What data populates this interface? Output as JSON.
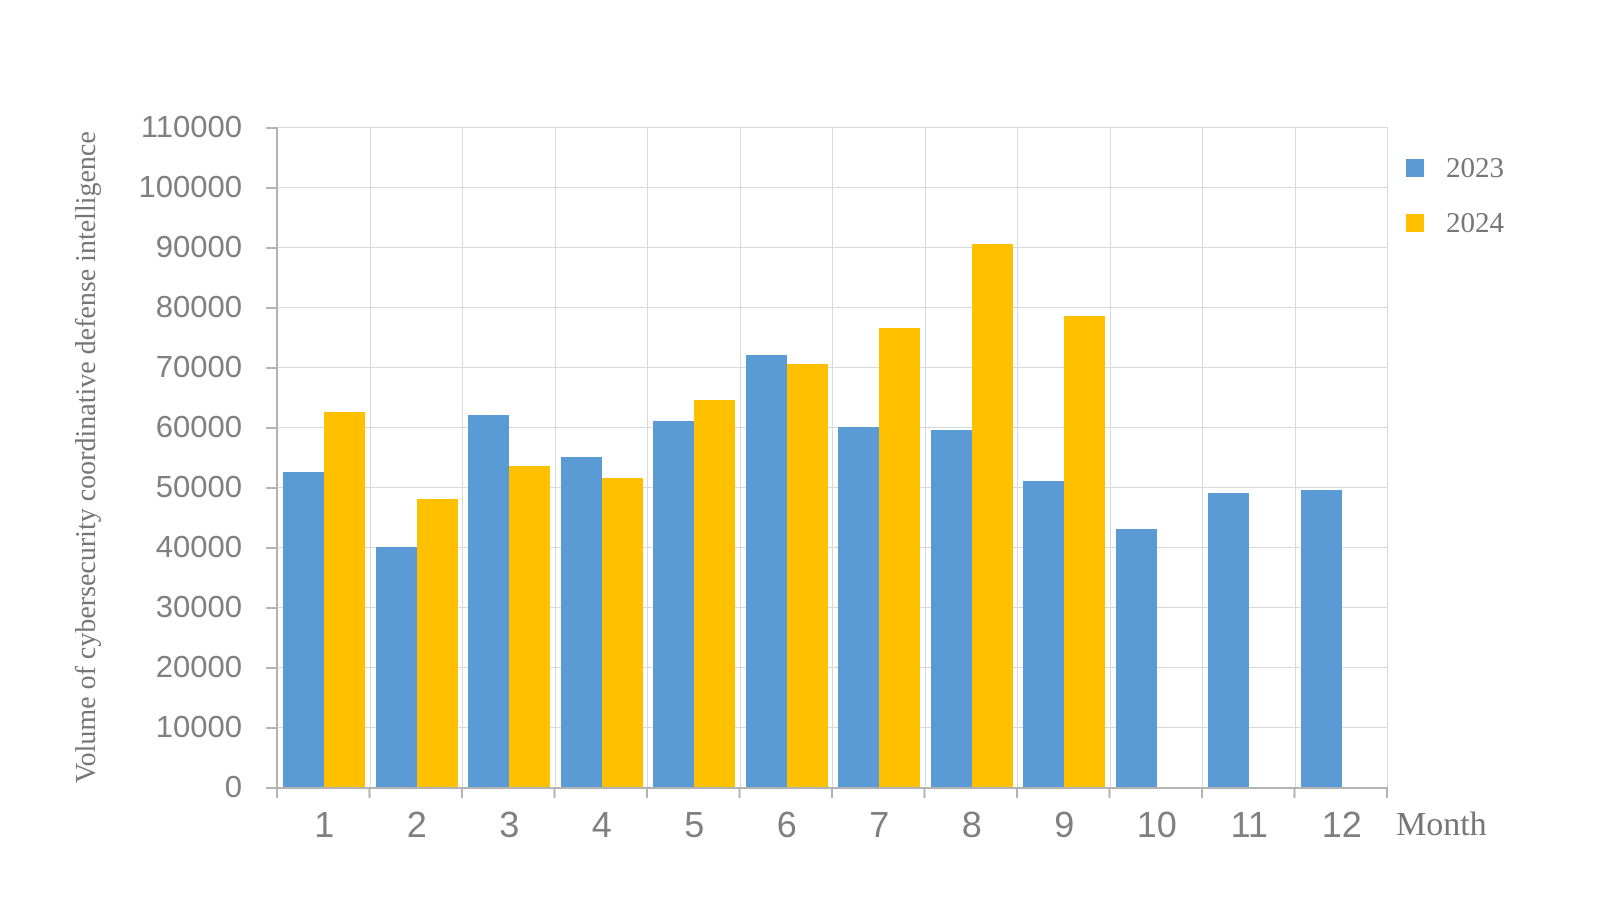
{
  "chart_data": {
    "type": "bar",
    "title": "",
    "xlabel": "Month",
    "ylabel": "Volume of cybersecurity coordinative defense intelligence",
    "categories": [
      "1",
      "2",
      "3",
      "4",
      "5",
      "6",
      "7",
      "8",
      "9",
      "10",
      "11",
      "12"
    ],
    "series": [
      {
        "name": "2023",
        "color": "#5B9BD5",
        "values": [
          52500,
          40000,
          62000,
          55000,
          61000,
          72000,
          60000,
          59500,
          51000,
          43000,
          49000,
          49500
        ]
      },
      {
        "name": "2024",
        "color": "#FFC000",
        "values": [
          62500,
          48000,
          53500,
          51500,
          64500,
          70500,
          76500,
          90500,
          78500,
          null,
          null,
          null
        ]
      }
    ],
    "ylim": [
      0,
      110000
    ],
    "ytick_step": 10000,
    "yticks": [
      0,
      10000,
      20000,
      30000,
      40000,
      50000,
      60000,
      70000,
      80000,
      90000,
      100000,
      110000
    ],
    "grid": "horizontal gridlines every 10000 plus vertical category separators",
    "legend_position": "top-right",
    "background_color": "#FFFFFF",
    "gridline_color": "#D9D9D9",
    "axis_line_color": "#B3B3B3",
    "tick_label_color": "#808080"
  }
}
